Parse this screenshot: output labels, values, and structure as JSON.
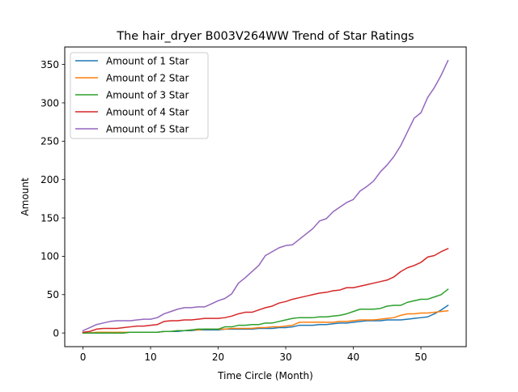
{
  "chart_data": {
    "type": "line",
    "title": "The hair_dryer B003V264WW Trend of Star Ratings",
    "xlabel": "Time Circle (Month)",
    "ylabel": "Amount",
    "xlim": [
      -2.7,
      56.7
    ],
    "ylim": [
      -17.8,
      372.8
    ],
    "xticks": [
      0,
      10,
      20,
      30,
      40,
      50
    ],
    "yticks": [
      0,
      50,
      100,
      150,
      200,
      250,
      300,
      350
    ],
    "grid": false,
    "legend_position": "top-left",
    "x": [
      0,
      1,
      2,
      3,
      4,
      5,
      6,
      7,
      8,
      9,
      10,
      11,
      12,
      13,
      14,
      15,
      16,
      17,
      18,
      19,
      20,
      21,
      22,
      23,
      24,
      25,
      26,
      27,
      28,
      29,
      30,
      31,
      32,
      33,
      34,
      35,
      36,
      37,
      38,
      39,
      40,
      41,
      42,
      43,
      44,
      45,
      46,
      47,
      48,
      49,
      50,
      51,
      52,
      53,
      54
    ],
    "series": [
      {
        "name": "Amount of 1 Star",
        "color": "#1f77b4",
        "values": [
          0,
          0,
          0,
          0,
          0,
          0,
          0,
          1,
          1,
          1,
          1,
          1,
          2,
          2,
          2,
          3,
          3,
          4,
          4,
          4,
          4,
          5,
          5,
          5,
          5,
          5,
          6,
          6,
          6,
          7,
          7,
          8,
          10,
          10,
          10,
          11,
          11,
          12,
          13,
          13,
          14,
          15,
          16,
          16,
          16,
          17,
          17,
          17,
          18,
          19,
          20,
          21,
          25,
          30,
          36
        ]
      },
      {
        "name": "Amount of 2 Star",
        "color": "#ff7f0e",
        "values": [
          0,
          0,
          1,
          1,
          1,
          1,
          1,
          1,
          1,
          1,
          1,
          1,
          2,
          2,
          3,
          3,
          4,
          4,
          5,
          5,
          5,
          5,
          6,
          6,
          6,
          6,
          7,
          7,
          8,
          8,
          9,
          10,
          14,
          14,
          14,
          14,
          14,
          14,
          15,
          15,
          16,
          17,
          17,
          17,
          18,
          19,
          20,
          23,
          25,
          25,
          26,
          26,
          27,
          28,
          29
        ]
      },
      {
        "name": "Amount of 3 Star",
        "color": "#2ca02c",
        "values": [
          0,
          0,
          0,
          0,
          0,
          0,
          0,
          1,
          1,
          1,
          1,
          1,
          2,
          2,
          3,
          3,
          4,
          5,
          5,
          5,
          5,
          8,
          8,
          10,
          10,
          11,
          11,
          13,
          13,
          15,
          17,
          19,
          20,
          20,
          20,
          21,
          21,
          22,
          23,
          25,
          28,
          31,
          31,
          31,
          32,
          35,
          36,
          36,
          40,
          42,
          44,
          44,
          47,
          50,
          57
        ]
      },
      {
        "name": "Amount of 4 Star",
        "color": "#d62728",
        "values": [
          1,
          2,
          5,
          6,
          6,
          6,
          7,
          8,
          9,
          9,
          10,
          11,
          15,
          16,
          16,
          17,
          17,
          18,
          19,
          19,
          19,
          20,
          22,
          25,
          27,
          27,
          30,
          33,
          35,
          39,
          41,
          44,
          46,
          48,
          50,
          52,
          53,
          55,
          56,
          59,
          59,
          61,
          63,
          65,
          67,
          69,
          73,
          80,
          85,
          88,
          92,
          99,
          101,
          106,
          110
        ]
      },
      {
        "name": "Amount of 5 Star",
        "color": "#9467bd",
        "values": [
          3,
          7,
          11,
          13,
          15,
          16,
          16,
          16,
          17,
          18,
          18,
          20,
          25,
          28,
          31,
          33,
          33,
          34,
          34,
          38,
          42,
          45,
          51,
          65,
          72,
          80,
          88,
          101,
          106,
          111,
          114,
          115,
          122,
          129,
          136,
          146,
          149,
          158,
          164,
          170,
          174,
          185,
          191,
          198,
          210,
          219,
          230,
          244,
          262,
          280,
          287,
          307,
          320,
          336,
          355
        ]
      }
    ]
  }
}
